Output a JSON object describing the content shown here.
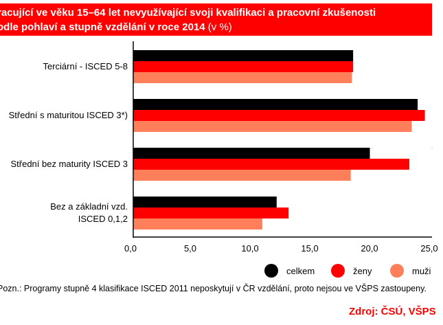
{
  "chart_data": {
    "type": "bar",
    "orientation": "horizontal",
    "title_line1": "racující ve věku 15–64 let nevyužívající svoji kvalifikaci a pracovní zkušenosti",
    "title_line2": "odle pohlaví a stupně vzdělání v roce 2014",
    "title_unit": "(v %)",
    "categories": [
      "Terciární - ISCED 5-8",
      "Střední s maturitou ISCED 3*)",
      "Střední bez maturity ISCED 3",
      "Bez a základní vzd. ISCED 0,1,2"
    ],
    "category_lines": [
      [
        "Terciární - ISCED 5-8"
      ],
      [
        "Střední s maturitou ISCED 3*)"
      ],
      [
        "Střední bez maturity ISCED 3"
      ],
      [
        "Bez a základní vzd.",
        "ISCED 0,1,2"
      ]
    ],
    "series": [
      {
        "name": "celkem",
        "color": "#000000",
        "values": [
          18.4,
          23.8,
          19.8,
          12.0
        ]
      },
      {
        "name": "ženy",
        "color": "#ff0000",
        "values": [
          18.4,
          24.4,
          23.1,
          13.0
        ]
      },
      {
        "name": "muži",
        "color": "#ff7f5a",
        "values": [
          18.3,
          23.3,
          18.2,
          10.8
        ]
      }
    ],
    "xlim": [
      0,
      25
    ],
    "xticks": [
      "0,0",
      "5,0",
      "10,0",
      "15,0",
      "20,0",
      "25,0"
    ],
    "legend_position": "bottom-right"
  },
  "note": "Pozn.: Programy stupně 4 klasifikace ISCED 2011 neposkytují v ČR vzdělání, proto nejsou ve VŠPS zastoupeny.",
  "source": "Zdroj: ČSÚ, VŠPS"
}
